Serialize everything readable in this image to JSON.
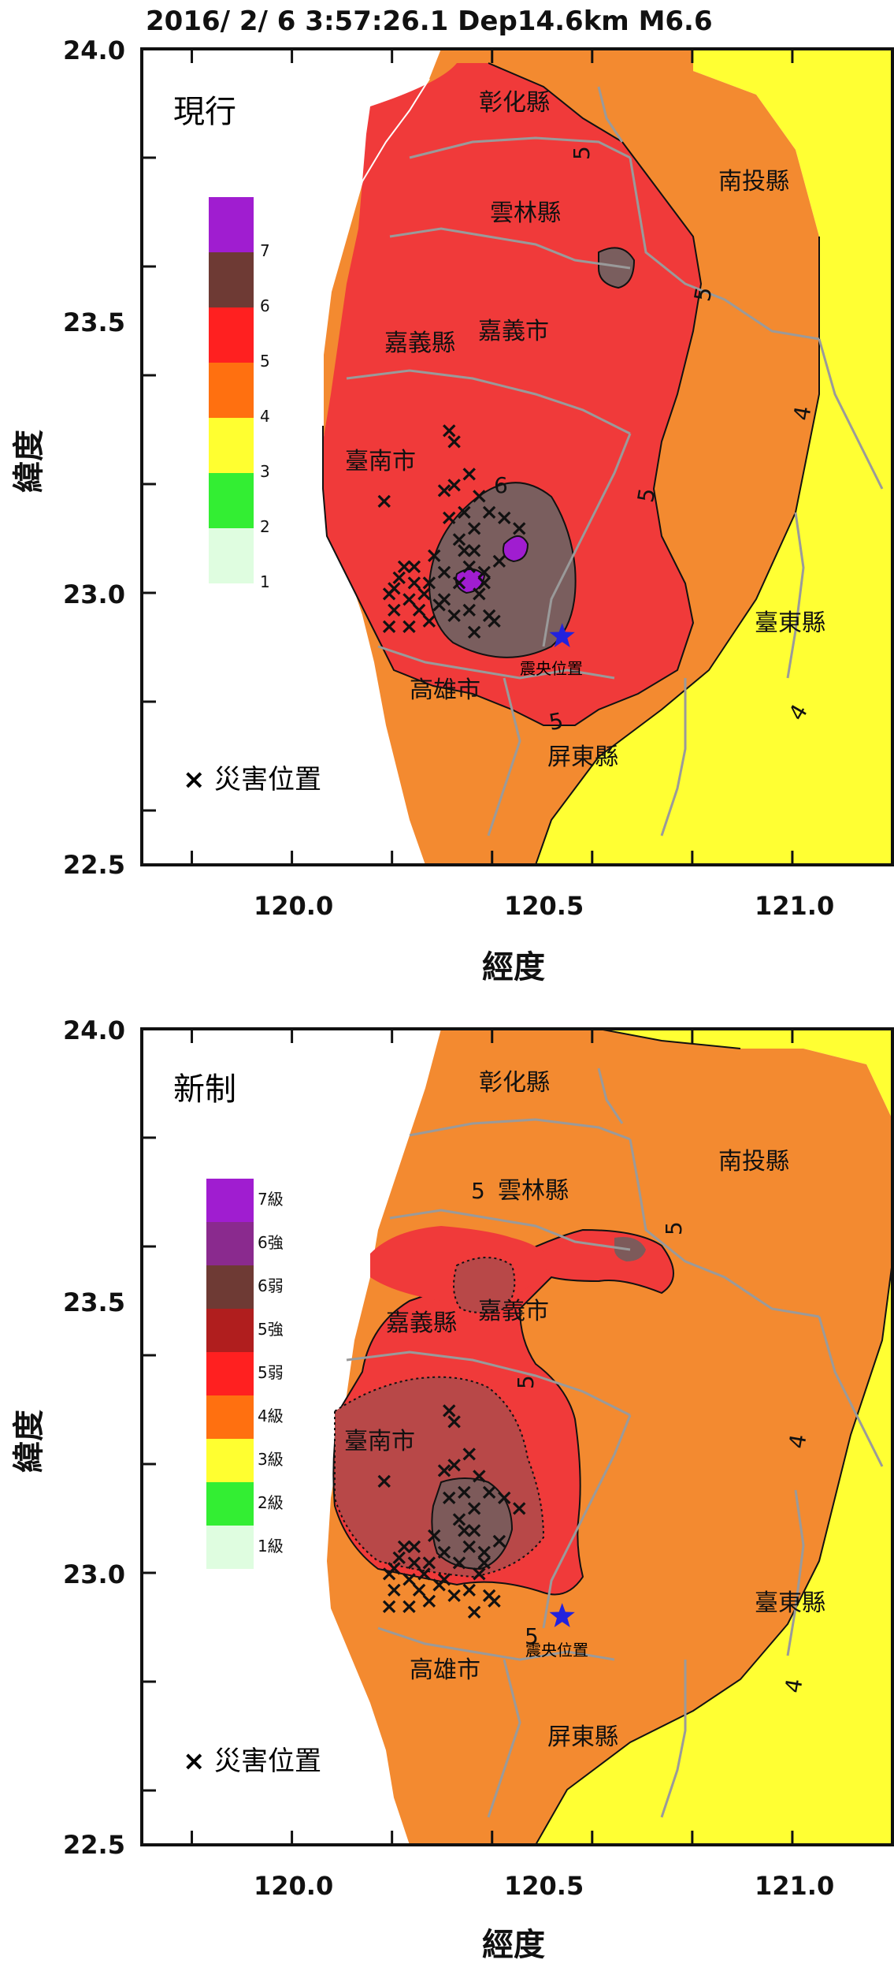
{
  "header": "2016/ 2/ 6  3:57:26.1 Dep14.6km M6.6",
  "axes": {
    "xlabel": "經度",
    "ylabel": "緯度",
    "xticks": [
      "120.0",
      "120.5",
      "121.0"
    ],
    "yticks": [
      "24.0",
      "23.5",
      "23.0",
      "22.5"
    ],
    "xlim": [
      119.7,
      121.2
    ],
    "ylim": [
      22.5,
      24.0
    ]
  },
  "panels": [
    {
      "title": "現行",
      "legend": [
        "7",
        "6",
        "5",
        "4",
        "3",
        "2",
        "1"
      ],
      "contour_labels": [
        "5",
        "5",
        "6",
        "5",
        "4",
        "4",
        "5"
      ],
      "regions": [
        "彰化縣",
        "雲林縣",
        "南投縣",
        "嘉義縣",
        "嘉義市",
        "臺南市",
        "臺東縣",
        "高雄市",
        "屏東縣"
      ],
      "epicenter_label": "震央位置",
      "damage_legend": "災害位置"
    },
    {
      "title": "新制",
      "legend": [
        "7級",
        "6強",
        "6弱",
        "5強",
        "5弱",
        "4級",
        "3級",
        "2級",
        "1級"
      ],
      "contour_labels": [
        "5",
        "5",
        "5",
        "4",
        "4",
        "5"
      ],
      "regions": [
        "彰化縣",
        "雲林縣",
        "南投縣",
        "嘉義縣",
        "嘉義市",
        "臺南市",
        "臺東縣",
        "高雄市",
        "屏東縣"
      ],
      "epicenter_label": "震央位置",
      "damage_legend": "災害位置"
    }
  ],
  "colors": {
    "level7": "#a01dd0",
    "level6": "#6e3a34",
    "level5": "#f03a3a",
    "level4": "#f38a30",
    "level3": "#ffff33",
    "level2": "#33ee33",
    "level1": "#dffde0",
    "new_6_strong": "#8a2a8e",
    "new_6_weak": "#7d5a5a",
    "new_5_strong": "#b84848",
    "new_5_weak": "#f03a3a",
    "epicenter": "#2222dd"
  },
  "epicenter": {
    "lon": 120.54,
    "lat": 22.92
  },
  "damage_points": [
    [
      120.19,
      22.94
    ],
    [
      120.2,
      22.97
    ],
    [
      120.19,
      23.0
    ],
    [
      120.21,
      23.03
    ],
    [
      120.22,
      23.05
    ],
    [
      120.2,
      23.01
    ],
    [
      120.23,
      22.99
    ],
    [
      120.24,
      23.02
    ],
    [
      120.25,
      22.97
    ],
    [
      120.26,
      23.0
    ],
    [
      120.27,
      23.02
    ],
    [
      120.29,
      22.98
    ],
    [
      120.3,
      23.04
    ],
    [
      120.32,
      22.96
    ],
    [
      120.33,
      23.02
    ],
    [
      120.34,
      23.08
    ],
    [
      120.35,
      23.05
    ],
    [
      120.36,
      23.12
    ],
    [
      120.37,
      23.0
    ],
    [
      120.38,
      23.04
    ],
    [
      120.35,
      22.97
    ],
    [
      120.36,
      22.93
    ],
    [
      120.39,
      22.96
    ],
    [
      120.33,
      23.1
    ],
    [
      120.31,
      23.14
    ],
    [
      120.3,
      23.19
    ],
    [
      120.32,
      23.2
    ],
    [
      120.34,
      23.15
    ],
    [
      120.31,
      23.3
    ],
    [
      120.32,
      23.28
    ],
    [
      120.35,
      23.22
    ],
    [
      120.37,
      23.18
    ],
    [
      120.39,
      23.15
    ],
    [
      120.36,
      23.08
    ],
    [
      120.42,
      23.14
    ],
    [
      120.45,
      23.12
    ],
    [
      120.41,
      23.06
    ],
    [
      120.38,
      23.02
    ],
    [
      120.18,
      23.17
    ],
    [
      120.23,
      22.94
    ],
    [
      120.24,
      23.05
    ],
    [
      120.27,
      22.95
    ],
    [
      120.28,
      23.07
    ],
    [
      120.3,
      22.99
    ],
    [
      120.4,
      22.95
    ]
  ]
}
